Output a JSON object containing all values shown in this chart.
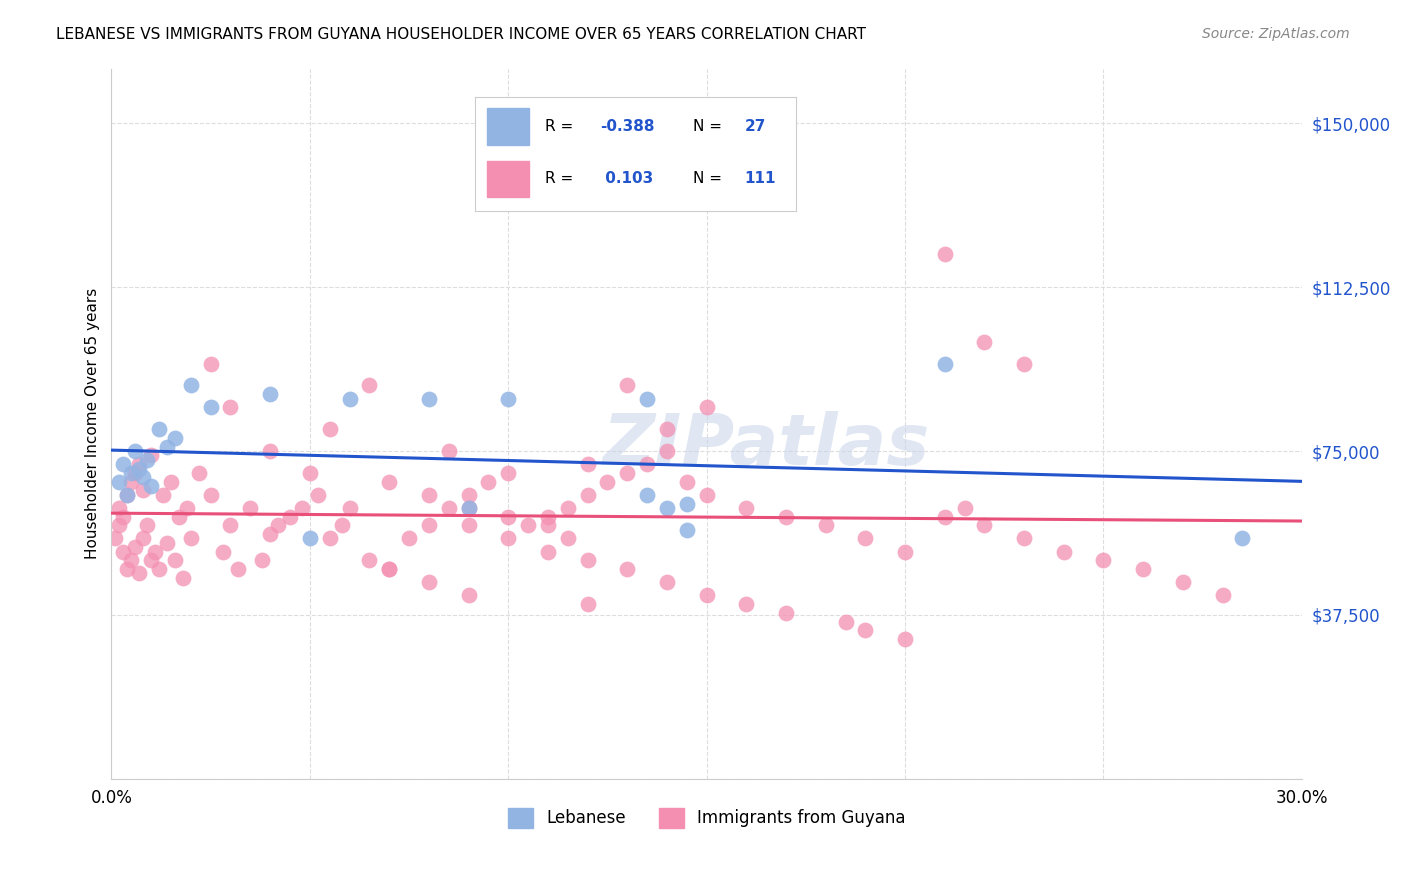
{
  "title": "LEBANESE VS IMMIGRANTS FROM GUYANA HOUSEHOLDER INCOME OVER 65 YEARS CORRELATION CHART",
  "source": "Source: ZipAtlas.com",
  "ylabel": "Householder Income Over 65 years",
  "xlim": [
    0.0,
    0.3
  ],
  "ylim": [
    0,
    162500
  ],
  "yticks": [
    0,
    37500,
    75000,
    112500,
    150000
  ],
  "ytick_labels": [
    "",
    "$37,500",
    "$75,000",
    "$112,500",
    "$150,000"
  ],
  "xticks": [
    0.0,
    0.05,
    0.1,
    0.15,
    0.2,
    0.25,
    0.3
  ],
  "xtick_labels": [
    "0.0%",
    "",
    "",
    "",
    "",
    "",
    "30.0%"
  ],
  "blue_color": "#92b4e3",
  "pink_color": "#f48fb1",
  "line_blue": "#2255cc",
  "line_pink": "#e8507a",
  "watermark": "ZIPatlas",
  "blue_points_x": [
    0.002,
    0.003,
    0.004,
    0.005,
    0.006,
    0.007,
    0.008,
    0.009,
    0.01,
    0.012,
    0.014,
    0.016,
    0.02,
    0.025,
    0.04,
    0.05,
    0.06,
    0.08,
    0.09,
    0.1,
    0.135,
    0.14,
    0.145,
    0.21,
    0.285,
    0.135,
    0.145
  ],
  "blue_points_y": [
    68000,
    72000,
    65000,
    70000,
    75000,
    71000,
    69000,
    73000,
    67000,
    80000,
    76000,
    78000,
    90000,
    85000,
    88000,
    55000,
    87000,
    87000,
    62000,
    87000,
    87000,
    62000,
    57000,
    95000,
    55000,
    65000,
    63000
  ],
  "pink_points_x": [
    0.001,
    0.002,
    0.002,
    0.003,
    0.003,
    0.004,
    0.004,
    0.005,
    0.005,
    0.006,
    0.006,
    0.007,
    0.007,
    0.008,
    0.008,
    0.009,
    0.01,
    0.01,
    0.011,
    0.012,
    0.013,
    0.014,
    0.015,
    0.016,
    0.017,
    0.018,
    0.019,
    0.02,
    0.022,
    0.025,
    0.028,
    0.03,
    0.032,
    0.035,
    0.038,
    0.04,
    0.042,
    0.045,
    0.048,
    0.05,
    0.052,
    0.055,
    0.058,
    0.06,
    0.065,
    0.07,
    0.075,
    0.08,
    0.085,
    0.09,
    0.095,
    0.1,
    0.105,
    0.11,
    0.115,
    0.12,
    0.125,
    0.13,
    0.135,
    0.14,
    0.145,
    0.15,
    0.16,
    0.17,
    0.18,
    0.19,
    0.2,
    0.21,
    0.215,
    0.22,
    0.23,
    0.24,
    0.25,
    0.26,
    0.27,
    0.28,
    0.13,
    0.15,
    0.025,
    0.03,
    0.04,
    0.055,
    0.065,
    0.085,
    0.12,
    0.07,
    0.08,
    0.09,
    0.1,
    0.11,
    0.115,
    0.07,
    0.08,
    0.09,
    0.12,
    0.09,
    0.1,
    0.11,
    0.12,
    0.13,
    0.14,
    0.15,
    0.16,
    0.17,
    0.185,
    0.19,
    0.2,
    0.21,
    0.22,
    0.23,
    0.14
  ],
  "pink_points_y": [
    55000,
    58000,
    62000,
    52000,
    60000,
    48000,
    65000,
    50000,
    68000,
    53000,
    70000,
    47000,
    72000,
    55000,
    66000,
    58000,
    50000,
    74000,
    52000,
    48000,
    65000,
    54000,
    68000,
    50000,
    60000,
    46000,
    62000,
    55000,
    70000,
    65000,
    52000,
    58000,
    48000,
    62000,
    50000,
    56000,
    58000,
    60000,
    62000,
    70000,
    65000,
    55000,
    58000,
    62000,
    50000,
    48000,
    55000,
    58000,
    62000,
    65000,
    68000,
    70000,
    58000,
    60000,
    62000,
    65000,
    68000,
    70000,
    72000,
    75000,
    68000,
    65000,
    62000,
    60000,
    58000,
    55000,
    52000,
    60000,
    62000,
    58000,
    55000,
    52000,
    50000,
    48000,
    45000,
    42000,
    90000,
    85000,
    95000,
    85000,
    75000,
    80000,
    90000,
    75000,
    72000,
    68000,
    65000,
    62000,
    60000,
    58000,
    55000,
    48000,
    45000,
    42000,
    40000,
    58000,
    55000,
    52000,
    50000,
    48000,
    45000,
    42000,
    40000,
    38000,
    36000,
    34000,
    32000,
    120000,
    100000,
    95000,
    80000
  ]
}
